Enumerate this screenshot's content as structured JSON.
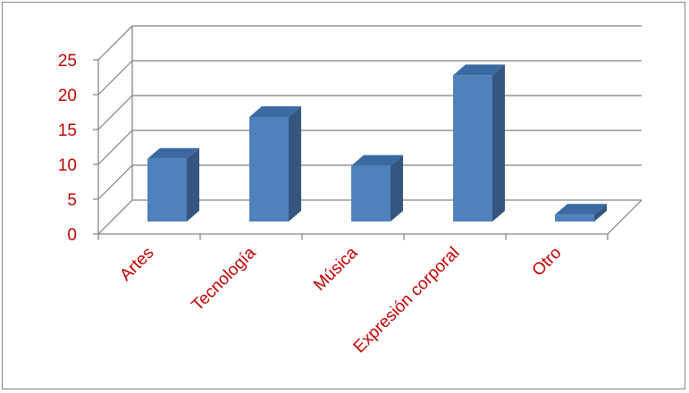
{
  "chart_data": {
    "type": "bar",
    "style": "3d-column",
    "categories": [
      "Artes",
      "Tecnología",
      "Música",
      "Expresión corporal",
      "Otro"
    ],
    "series": [
      {
        "values": [
          9,
          15,
          8,
          21,
          1
        ]
      }
    ],
    "yticks": [
      "0",
      "5",
      "10",
      "15",
      "20",
      "25"
    ],
    "ylim": [
      0,
      25
    ],
    "grid": true,
    "legend": "none",
    "colors": {
      "bar_front": "#4f81bd",
      "bar_side": "#34567f",
      "bar_top": "#3b6aa3",
      "axis_text": "#c00000",
      "gridline": "#808080"
    }
  }
}
